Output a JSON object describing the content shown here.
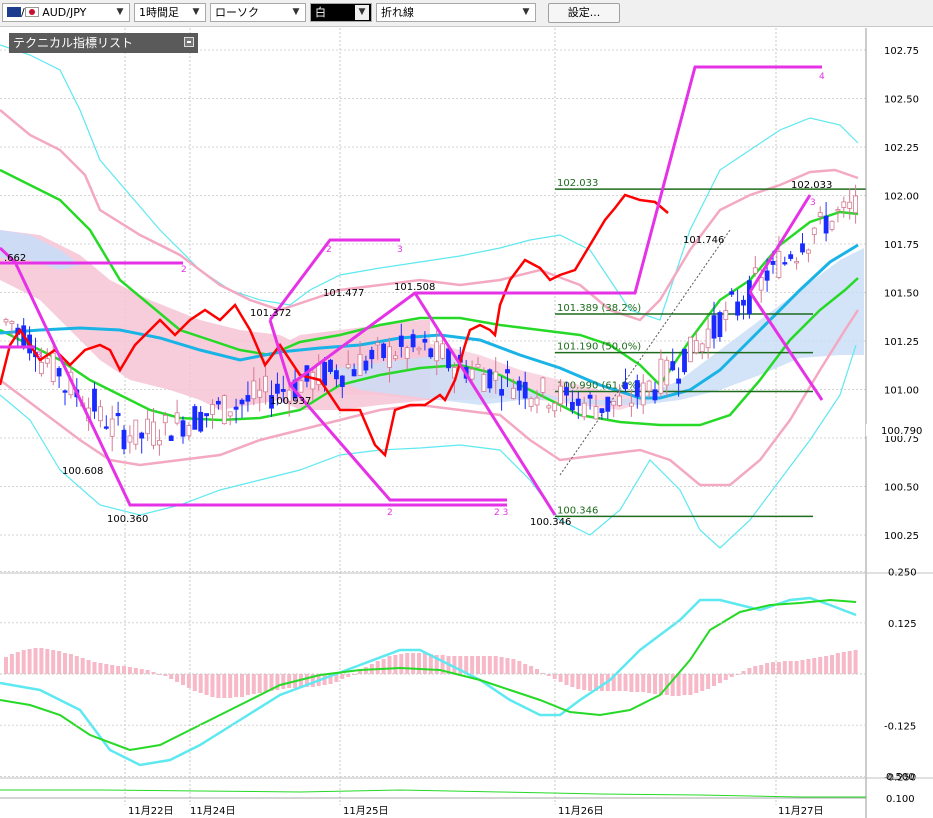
{
  "toolbar": {
    "symbol": "AUD/JPY",
    "timeframe": "1時間足",
    "chart_style": "ローソク",
    "color_label": "白",
    "overlay_type": "折れ線",
    "settings_label": "設定..."
  },
  "indicator_panel": {
    "title": "テクニカル指標リスト"
  },
  "colors": {
    "background": "#ffffff",
    "grid": "#b0b0b0",
    "bull_candle": "#f4a6b8",
    "bear_candle": "#1a2bff",
    "upper_bb": "#5ee8f0",
    "lower_bb": "#f3a9c1",
    "ma_short": "#26d926",
    "ma_long": "#1ab3e6",
    "lagging": "#ff0000",
    "zigzag": "#e632e6",
    "fibo": "#1d6b1d",
    "macd_hist": "#f7b8c8"
  },
  "chart_data": {
    "type": "candlestick",
    "price_axis": {
      "ylim": [
        100.2,
        102.8
      ],
      "ticks": [
        "102.75",
        "102.50",
        "102.25",
        "102.00",
        "101.75",
        "101.50",
        "101.25",
        "101.00",
        "100.75",
        "100.50",
        "100.25"
      ],
      "tick_values": [
        102.75,
        102.5,
        102.25,
        102.0,
        101.75,
        101.5,
        101.25,
        101.0,
        100.75,
        100.5,
        100.25
      ],
      "current_price": "100.790"
    },
    "x_labels": [
      "11月22日",
      "11月24日",
      "11月25日",
      "11月26日",
      "11月27日"
    ],
    "price_annotations": [
      {
        "text": "100.608"
      },
      {
        "text": "100.360"
      },
      {
        "text": "101.372"
      },
      {
        "text": "101.477"
      },
      {
        "text": "101.508"
      },
      {
        "text": "100.937"
      },
      {
        "text": "100.346"
      },
      {
        "text": "101.746"
      },
      {
        "text": "102.033"
      },
      {
        "text": ".662"
      }
    ],
    "fibonacci": [
      {
        "price": 102.033,
        "label": "102.033"
      },
      {
        "price": 101.389,
        "label": "101.389 (38.2%)"
      },
      {
        "price": 101.19,
        "label": "101.190 (50.0%)"
      },
      {
        "price": 100.99,
        "label": "100.990 (61.8%)"
      },
      {
        "price": 100.346,
        "label": "100.346"
      }
    ],
    "zigzag_marks": [
      "2",
      "3",
      "2",
      "3",
      "2",
      "2 3",
      "4",
      "3"
    ],
    "oscillator_axis": {
      "ticks": [
        "0.250",
        "0.125",
        "-0.125",
        "-0.250"
      ],
      "tick_values": [
        0.25,
        0.125,
        -0.125,
        -0.25
      ]
    },
    "sub_axis": {
      "ticks": [
        "0.500",
        "0.100"
      ]
    },
    "series": [
      {
        "values": [
          101.35,
          101.3,
          101.25,
          101.15,
          101.1,
          101.02,
          100.98,
          100.92,
          100.85,
          100.8,
          100.78,
          100.76,
          100.78,
          100.8,
          100.82,
          100.84,
          100.86,
          100.88,
          100.9,
          100.92,
          100.94,
          100.96,
          100.98,
          101.0,
          101.02,
          101.04,
          101.06,
          101.08,
          101.1,
          101.12,
          101.14,
          101.16,
          101.18,
          101.2,
          101.2,
          101.2,
          101.19,
          101.17,
          101.14,
          101.12,
          101.1,
          101.08,
          101.06,
          101.04,
          101.02,
          101.0,
          100.98,
          100.96,
          100.94,
          100.93,
          100.92,
          100.92,
          100.93,
          100.95,
          100.98,
          101.02,
          101.07,
          101.12,
          101.18,
          101.24,
          101.3,
          101.36,
          101.42,
          101.48,
          101.54,
          101.6,
          101.66,
          101.72,
          101.78,
          101.83,
          101.87,
          101.9,
          101.92,
          101.93
        ]
      },
      {
        "values": [
          101.28,
          101.27,
          101.26,
          101.24,
          101.22,
          101.2,
          101.18,
          101.16,
          101.14,
          101.12,
          101.11,
          101.11,
          101.12,
          101.13,
          101.14,
          101.15,
          101.16,
          101.17,
          101.18,
          101.19,
          101.2,
          101.21,
          101.22,
          101.23,
          101.24,
          101.25,
          101.26,
          101.27,
          101.28,
          101.29,
          101.3,
          101.3,
          101.3,
          101.29,
          101.28,
          101.27,
          101.26,
          101.25,
          101.23,
          101.21,
          101.19,
          101.17,
          101.15,
          101.13,
          101.1,
          101.08,
          101.05,
          101.02,
          101.0,
          100.98,
          100.96,
          100.95,
          100.95,
          100.96,
          100.98,
          101.0,
          101.04,
          101.08,
          101.13,
          101.18,
          101.24,
          101.3,
          101.36,
          101.42,
          101.48,
          101.54,
          101.6,
          101.65,
          101.7,
          101.74,
          101.77,
          101.79,
          101.8,
          101.8
        ]
      }
    ]
  }
}
